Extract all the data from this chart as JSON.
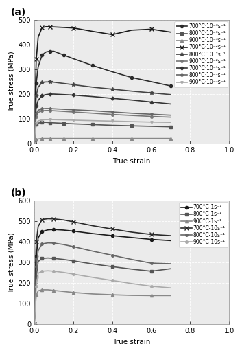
{
  "panel_a": {
    "title": "(a)",
    "ylabel": "True stress (MPa)",
    "xlabel": "True strain",
    "ylim": [
      0,
      500
    ],
    "xlim": [
      0,
      1
    ],
    "yticks": [
      0,
      100,
      200,
      300,
      400,
      500
    ],
    "xticks": [
      0,
      0.2,
      0.4,
      0.6,
      0.8,
      1.0
    ],
    "series": [
      {
        "label": "700°C·10⁻³s⁻¹",
        "color": "#2a2a2a",
        "marker": "o",
        "markersize": 3,
        "linewidth": 1.2,
        "x": [
          0.0,
          0.005,
          0.01,
          0.02,
          0.04,
          0.06,
          0.08,
          0.1,
          0.15,
          0.2,
          0.3,
          0.4,
          0.5,
          0.6,
          0.7
        ],
        "y": [
          0,
          150,
          245,
          310,
          358,
          370,
          373,
          373,
          358,
          343,
          315,
          290,
          267,
          250,
          233
        ]
      },
      {
        "label": "800°C·10⁻³s⁻¹",
        "color": "#555555",
        "marker": "s",
        "markersize": 3,
        "linewidth": 1.2,
        "x": [
          0.0,
          0.005,
          0.01,
          0.02,
          0.04,
          0.06,
          0.08,
          0.1,
          0.15,
          0.2,
          0.3,
          0.4,
          0.5,
          0.6,
          0.7
        ],
        "y": [
          0,
          50,
          78,
          83,
          86,
          86,
          85,
          84,
          82,
          80,
          77,
          74,
          72,
          70,
          68
        ]
      },
      {
        "label": "900°C·10⁻³s⁻¹",
        "color": "#888888",
        "marker": "^",
        "markersize": 3,
        "linewidth": 1.2,
        "x": [
          0.0,
          0.005,
          0.01,
          0.02,
          0.04,
          0.06,
          0.08,
          0.1,
          0.15,
          0.2,
          0.3,
          0.4,
          0.5,
          0.6,
          0.7
        ],
        "y": [
          0,
          10,
          16,
          19,
          21,
          21,
          21,
          21,
          21,
          21,
          21,
          21,
          21,
          21,
          21
        ]
      },
      {
        "label": "700°C·10⁻²s⁻¹",
        "color": "#1a1a1a",
        "marker": "x",
        "markersize": 4,
        "linewidth": 1.2,
        "x": [
          0.0,
          0.005,
          0.01,
          0.02,
          0.04,
          0.06,
          0.08,
          0.1,
          0.2,
          0.3,
          0.4,
          0.5,
          0.6,
          0.7
        ],
        "y": [
          0,
          200,
          340,
          430,
          468,
          472,
          472,
          471,
          467,
          453,
          440,
          458,
          462,
          450
        ]
      },
      {
        "label": "800°C·10⁻²s⁻¹",
        "color": "#444444",
        "marker": "*",
        "markersize": 4,
        "linewidth": 1.2,
        "x": [
          0.0,
          0.005,
          0.01,
          0.02,
          0.04,
          0.06,
          0.08,
          0.1,
          0.2,
          0.3,
          0.4,
          0.5,
          0.6,
          0.7
        ],
        "y": [
          0,
          120,
          195,
          228,
          247,
          249,
          249,
          248,
          238,
          228,
          220,
          212,
          205,
          198
        ]
      },
      {
        "label": "900°C·10⁻²s⁻¹",
        "color": "#777777",
        "marker": "o",
        "markersize": 2.5,
        "linewidth": 1.2,
        "x": [
          0.0,
          0.005,
          0.01,
          0.02,
          0.04,
          0.06,
          0.08,
          0.1,
          0.2,
          0.3,
          0.4,
          0.5,
          0.6,
          0.7
        ],
        "y": [
          0,
          65,
          110,
          126,
          133,
          134,
          134,
          133,
          128,
          123,
          118,
          114,
          110,
          107
        ]
      },
      {
        "label": "700°C·10⁻¹s⁻¹",
        "color": "#333333",
        "marker": "D",
        "markersize": 2.5,
        "linewidth": 1.2,
        "x": [
          0.0,
          0.005,
          0.01,
          0.02,
          0.04,
          0.06,
          0.08,
          0.1,
          0.2,
          0.3,
          0.4,
          0.5,
          0.6,
          0.7
        ],
        "y": [
          0,
          95,
          152,
          175,
          194,
          198,
          200,
          200,
          196,
          190,
          183,
          176,
          168,
          160
        ]
      },
      {
        "label": "800°C·10⁻¹s⁻¹",
        "color": "#666666",
        "marker": "p",
        "markersize": 2.5,
        "linewidth": 1.2,
        "x": [
          0.0,
          0.005,
          0.01,
          0.02,
          0.04,
          0.06,
          0.08,
          0.1,
          0.2,
          0.3,
          0.4,
          0.5,
          0.6,
          0.7
        ],
        "y": [
          0,
          80,
          122,
          135,
          141,
          142,
          142,
          141,
          137,
          133,
          128,
          123,
          119,
          115
        ]
      },
      {
        "label": "900°C·10⁻¹s⁻¹",
        "color": "#aaaaaa",
        "marker": "v",
        "markersize": 2.5,
        "linewidth": 1.2,
        "x": [
          0.0,
          0.005,
          0.01,
          0.02,
          0.04,
          0.06,
          0.08,
          0.1,
          0.2,
          0.3,
          0.4,
          0.5,
          0.6,
          0.7
        ],
        "y": [
          0,
          55,
          85,
          92,
          96,
          97,
          97,
          97,
          95,
          93,
          91,
          89,
          87,
          86
        ]
      }
    ]
  },
  "panel_b": {
    "title": "(b)",
    "ylabel": "True stress (MPa)",
    "xlabel": "True strain",
    "ylim": [
      0,
      600
    ],
    "xlim": [
      0,
      1
    ],
    "yticks": [
      0,
      100,
      200,
      300,
      400,
      500,
      600
    ],
    "xticks": [
      0,
      0.2,
      0.4,
      0.6,
      0.8,
      1.0
    ],
    "series": [
      {
        "label": "700°C-1s⁻¹",
        "color": "#1a1a1a",
        "marker": "o",
        "markersize": 3,
        "linewidth": 1.2,
        "x": [
          0.0,
          0.005,
          0.01,
          0.02,
          0.04,
          0.07,
          0.1,
          0.15,
          0.2,
          0.3,
          0.4,
          0.5,
          0.6,
          0.7
        ],
        "y": [
          0,
          200,
          330,
          420,
          450,
          458,
          460,
          457,
          452,
          440,
          430,
          421,
          412,
          406
        ]
      },
      {
        "label": "800°C-1s⁻¹",
        "color": "#555555",
        "marker": "s",
        "markersize": 3,
        "linewidth": 1.2,
        "x": [
          0.0,
          0.005,
          0.01,
          0.02,
          0.04,
          0.07,
          0.1,
          0.15,
          0.2,
          0.3,
          0.4,
          0.5,
          0.6,
          0.7
        ],
        "y": [
          0,
          100,
          230,
          305,
          320,
          322,
          320,
          315,
          308,
          293,
          280,
          268,
          258,
          270
        ]
      },
      {
        "label": "900°C-1s⁻¹",
        "color": "#888888",
        "marker": "^",
        "markersize": 3,
        "linewidth": 1.2,
        "x": [
          0.0,
          0.005,
          0.01,
          0.02,
          0.04,
          0.07,
          0.1,
          0.15,
          0.2,
          0.3,
          0.4,
          0.5,
          0.6,
          0.7
        ],
        "y": [
          0,
          80,
          143,
          163,
          168,
          168,
          165,
          160,
          155,
          148,
          144,
          141,
          140,
          140
        ]
      },
      {
        "label": "700°C-10s⁻¹",
        "color": "#2a2a2a",
        "marker": "x",
        "markersize": 4,
        "linewidth": 1.2,
        "x": [
          0.0,
          0.005,
          0.01,
          0.02,
          0.04,
          0.07,
          0.1,
          0.15,
          0.2,
          0.3,
          0.4,
          0.5,
          0.6,
          0.7
        ],
        "y": [
          0,
          250,
          400,
          475,
          508,
          512,
          511,
          506,
          497,
          478,
          462,
          447,
          436,
          430
        ]
      },
      {
        "label": "800°C-10s⁻¹",
        "color": "#666666",
        "marker": "o",
        "markersize": 2.5,
        "linewidth": 1.2,
        "x": [
          0.0,
          0.005,
          0.01,
          0.02,
          0.04,
          0.07,
          0.1,
          0.15,
          0.2,
          0.3,
          0.4,
          0.5,
          0.6,
          0.7
        ],
        "y": [
          0,
          145,
          280,
          358,
          390,
          395,
          394,
          387,
          377,
          355,
          335,
          315,
          297,
          294
        ]
      },
      {
        "label": "900°C-10s⁻¹",
        "color": "#aaaaaa",
        "marker": "o",
        "markersize": 2.5,
        "linewidth": 1.2,
        "x": [
          0.0,
          0.005,
          0.01,
          0.02,
          0.04,
          0.07,
          0.1,
          0.15,
          0.2,
          0.3,
          0.4,
          0.5,
          0.6,
          0.7
        ],
        "y": [
          0,
          80,
          185,
          248,
          258,
          260,
          258,
          252,
          244,
          228,
          213,
          198,
          185,
          177
        ]
      }
    ]
  },
  "bg_color": "#ebebeb",
  "legend_fontsize": 5.5,
  "axis_fontsize": 7.5,
  "tick_fontsize": 7,
  "title_fontsize": 10
}
